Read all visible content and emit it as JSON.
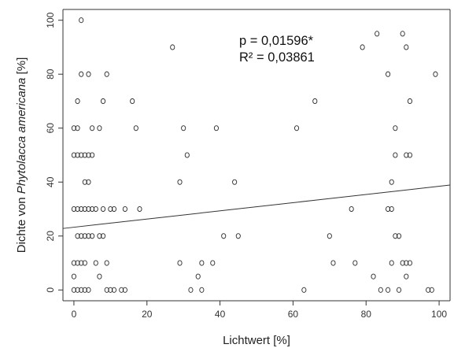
{
  "chart_data": {
    "type": "scatter",
    "title": "",
    "xlabel": "Lichtwert [%]",
    "ylabel_prefix": "Dichte von ",
    "ylabel_species": "Phytolacca americana",
    "ylabel_suffix": " [%]",
    "xlim": [
      -3,
      103
    ],
    "ylim": [
      -4,
      104
    ],
    "xticks": [
      0,
      20,
      40,
      60,
      80,
      100
    ],
    "yticks": [
      0,
      20,
      40,
      60,
      80,
      100
    ],
    "grid": false,
    "annotations": {
      "p_value": "p = 0,01596*",
      "r_squared": "R² = 0,03861"
    },
    "trendline": {
      "x": [
        -3,
        103
      ],
      "y": [
        22.8,
        38.9
      ]
    },
    "points": [
      [
        2,
        100
      ],
      [
        27,
        90
      ],
      [
        79,
        90
      ],
      [
        83,
        95
      ],
      [
        90,
        95
      ],
      [
        91,
        90
      ],
      [
        2,
        80
      ],
      [
        4,
        80
      ],
      [
        9,
        80
      ],
      [
        86,
        80
      ],
      [
        99,
        80
      ],
      [
        1,
        70
      ],
      [
        8,
        70
      ],
      [
        16,
        70
      ],
      [
        66,
        70
      ],
      [
        92,
        70
      ],
      [
        0,
        60
      ],
      [
        1,
        60
      ],
      [
        5,
        60
      ],
      [
        7,
        60
      ],
      [
        17,
        60
      ],
      [
        30,
        60
      ],
      [
        39,
        60
      ],
      [
        61,
        60
      ],
      [
        88,
        60
      ],
      [
        0,
        50
      ],
      [
        1,
        50
      ],
      [
        2,
        50
      ],
      [
        3,
        50
      ],
      [
        4,
        50
      ],
      [
        5,
        50
      ],
      [
        31,
        50
      ],
      [
        88,
        50
      ],
      [
        91,
        50
      ],
      [
        92,
        50
      ],
      [
        3,
        40
      ],
      [
        4,
        40
      ],
      [
        29,
        40
      ],
      [
        44,
        40
      ],
      [
        87,
        40
      ],
      [
        0,
        30
      ],
      [
        1,
        30
      ],
      [
        2,
        30
      ],
      [
        3,
        30
      ],
      [
        4,
        30
      ],
      [
        5,
        30
      ],
      [
        6,
        30
      ],
      [
        8,
        30
      ],
      [
        10,
        30
      ],
      [
        11,
        30
      ],
      [
        14,
        30
      ],
      [
        18,
        30
      ],
      [
        76,
        30
      ],
      [
        86,
        30
      ],
      [
        87,
        30
      ],
      [
        1,
        20
      ],
      [
        2,
        20
      ],
      [
        3,
        20
      ],
      [
        4,
        20
      ],
      [
        5,
        20
      ],
      [
        7,
        20
      ],
      [
        8,
        20
      ],
      [
        41,
        20
      ],
      [
        45,
        20
      ],
      [
        70,
        20
      ],
      [
        88,
        20
      ],
      [
        89,
        20
      ],
      [
        0,
        10
      ],
      [
        1,
        10
      ],
      [
        2,
        10
      ],
      [
        3,
        10
      ],
      [
        6,
        10
      ],
      [
        9,
        10
      ],
      [
        29,
        10
      ],
      [
        35,
        10
      ],
      [
        38,
        10
      ],
      [
        71,
        10
      ],
      [
        77,
        10
      ],
      [
        87,
        10
      ],
      [
        90,
        10
      ],
      [
        91,
        10
      ],
      [
        92,
        10
      ],
      [
        0,
        5
      ],
      [
        7,
        5
      ],
      [
        34,
        5
      ],
      [
        82,
        5
      ],
      [
        91,
        5
      ],
      [
        0,
        0
      ],
      [
        1,
        0
      ],
      [
        2,
        0
      ],
      [
        3,
        0
      ],
      [
        4,
        0
      ],
      [
        9,
        0
      ],
      [
        10,
        0
      ],
      [
        11,
        0
      ],
      [
        13,
        0
      ],
      [
        14,
        0
      ],
      [
        32,
        0
      ],
      [
        35,
        0
      ],
      [
        63,
        0
      ],
      [
        84,
        0
      ],
      [
        86,
        0
      ],
      [
        89,
        0
      ],
      [
        97,
        0
      ],
      [
        98,
        0
      ]
    ]
  }
}
